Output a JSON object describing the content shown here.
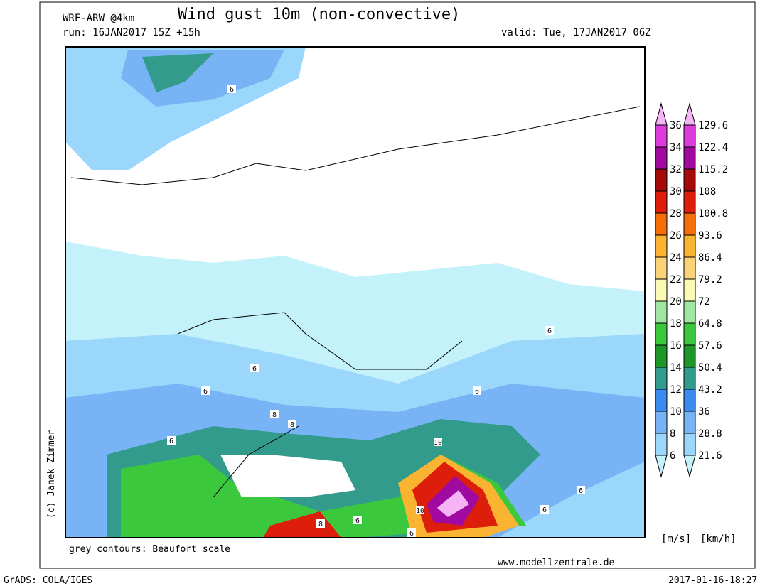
{
  "header": {
    "model": "WRF-ARW @4km",
    "title": "Wind gust 10m (non-convective)",
    "run": "run: 16JAN2017 15Z +15h",
    "valid": "valid: Tue, 17JAN2017 06Z"
  },
  "legend": {
    "ms_labels": [
      "6",
      "8",
      "10",
      "12",
      "14",
      "16",
      "18",
      "20",
      "22",
      "24",
      "26",
      "28",
      "30",
      "32",
      "34",
      "36"
    ],
    "kmh_labels": [
      "21.6",
      "28.8",
      "36",
      "43.2",
      "50.4",
      "57.6",
      "64.8",
      "72",
      "79.2",
      "86.4",
      "93.6",
      "100.8",
      "108",
      "115.2",
      "122.4",
      "129.6"
    ],
    "colors": [
      "#c3f2fa",
      "#9bd7fa",
      "#78b4f5",
      "#3c8cf0",
      "#329b8c",
      "#1e9628",
      "#3cc83c",
      "#a0e6a0",
      "#fafab4",
      "#fad278",
      "#fab432",
      "#f56e0a",
      "#dc1e0a",
      "#a50a0a",
      "#a00aa0",
      "#dc3cdc",
      "#f5b4f5"
    ],
    "unit_ms": "[m/s]",
    "unit_kmh": "[km/h]"
  },
  "map": {
    "contour_labels": [
      "6",
      "6",
      "6",
      "6",
      "6",
      "8",
      "8",
      "6",
      "10",
      "10",
      "8",
      "6",
      "6",
      "6",
      "6"
    ]
  },
  "footer": {
    "note": "grey contours: Beaufort scale",
    "website": "www.modellzentrale.de",
    "copyright": "(c) Janek Zimmer",
    "software": "GrADS: COLA/IGES",
    "timestamp": "2017-01-16-18:27"
  }
}
